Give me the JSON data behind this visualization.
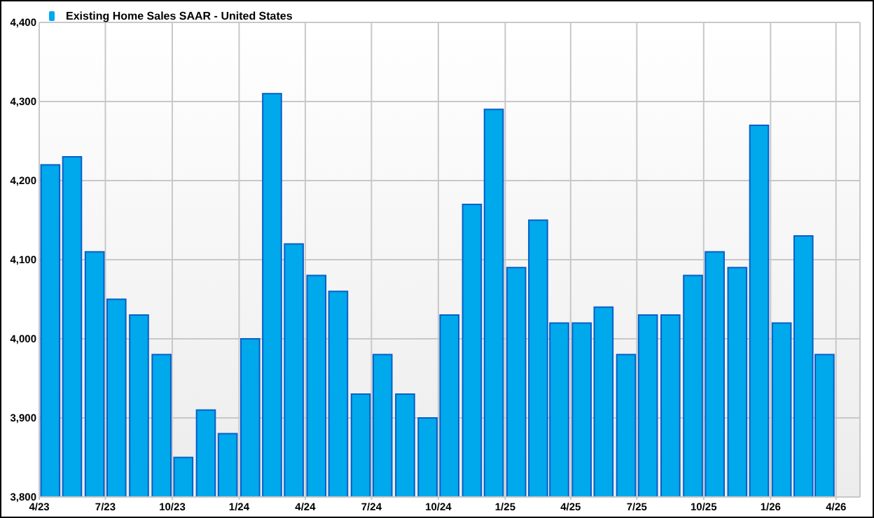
{
  "chart_data": {
    "type": "bar",
    "x": [
      "2023-04-16",
      "2023-05-16",
      "2023-06-16",
      "2023-07-16",
      "2023-08-16",
      "2023-09-16",
      "2023-10-16",
      "2023-11-16",
      "2023-12-16",
      "2024-01-16",
      "2024-02-15",
      "2024-03-16",
      "2024-04-16",
      "2024-05-16",
      "2024-06-16",
      "2024-07-16",
      "2024-08-16",
      "2024-09-16",
      "2024-10-16",
      "2024-11-16",
      "2024-12-16",
      "2025-01-16",
      "2025-02-15",
      "2025-03-16",
      "2025-04-16",
      "2025-05-16",
      "2025-06-16",
      "2025-07-16",
      "2025-08-16",
      "2025-09-16",
      "2025-10-16",
      "2025-11-16",
      "2025-12-16",
      "2026-01-16",
      "2026-02-15",
      "2026-03-16"
    ],
    "series": [
      {
        "name": "Existing Home Sales SAAR - United States",
        "color": "#00a8ec",
        "values": [
          4220,
          4230,
          4110,
          4050,
          4030,
          3980,
          3850,
          3910,
          3880,
          4000,
          4310,
          4120,
          4080,
          4060,
          3930,
          3980,
          3930,
          3900,
          4030,
          4170,
          4290,
          4090,
          4150,
          4020,
          4020,
          4040,
          3980,
          4030,
          4030,
          4080,
          4110,
          4090,
          4270,
          4020,
          4130,
          3980
        ]
      }
    ],
    "xlim": [
      "2023-04-01",
      "2026-05-04"
    ],
    "xticks": [
      {
        "value": "2023-04-01",
        "label": "4/23"
      },
      {
        "value": "2023-07-01",
        "label": "7/23"
      },
      {
        "value": "2023-10-01",
        "label": "10/23"
      },
      {
        "value": "2024-01-01",
        "label": "1/24"
      },
      {
        "value": "2024-04-01",
        "label": "4/24"
      },
      {
        "value": "2024-07-01",
        "label": "7/24"
      },
      {
        "value": "2024-10-01",
        "label": "10/24"
      },
      {
        "value": "2025-01-01",
        "label": "1/25"
      },
      {
        "value": "2025-04-01",
        "label": "4/25"
      },
      {
        "value": "2025-07-01",
        "label": "7/25"
      },
      {
        "value": "2025-10-01",
        "label": "10/25"
      },
      {
        "value": "2026-01-01",
        "label": "1/26"
      },
      {
        "value": "2026-04-01",
        "label": "4/26"
      }
    ],
    "ylim": [
      3800,
      4400
    ],
    "yticks": [
      {
        "value": 3800,
        "label": "3,800"
      },
      {
        "value": 3900,
        "label": "3,900"
      },
      {
        "value": 4000,
        "label": "4,000"
      },
      {
        "value": 4100,
        "label": "4,100"
      },
      {
        "value": 4200,
        "label": "4,200"
      },
      {
        "value": 4300,
        "label": "4,300"
      },
      {
        "value": 4400,
        "label": "4,400"
      }
    ],
    "grid": true,
    "legend": "top left"
  }
}
